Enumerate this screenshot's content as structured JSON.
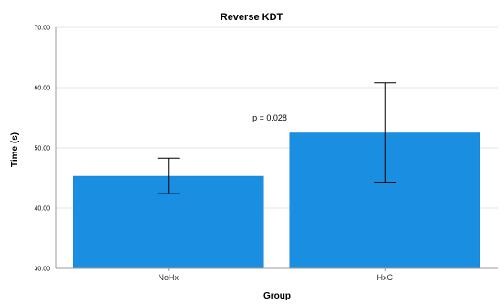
{
  "chart_data": {
    "type": "bar",
    "title": "Reverse KDT",
    "xlabel": "Group",
    "ylabel": "Time (s)",
    "categories": [
      "NoHx",
      "HxC"
    ],
    "values": [
      45.3,
      52.5
    ],
    "error_low": [
      42.4,
      44.3
    ],
    "error_high": [
      48.3,
      60.8
    ],
    "ylim": [
      30,
      70
    ],
    "yticks": [
      "30.00",
      "40.00",
      "50.00",
      "60.00",
      "70.00"
    ],
    "annotation": "p = 0.028",
    "bar_color": "#1a8ee0",
    "grid": true,
    "legend": "none"
  }
}
